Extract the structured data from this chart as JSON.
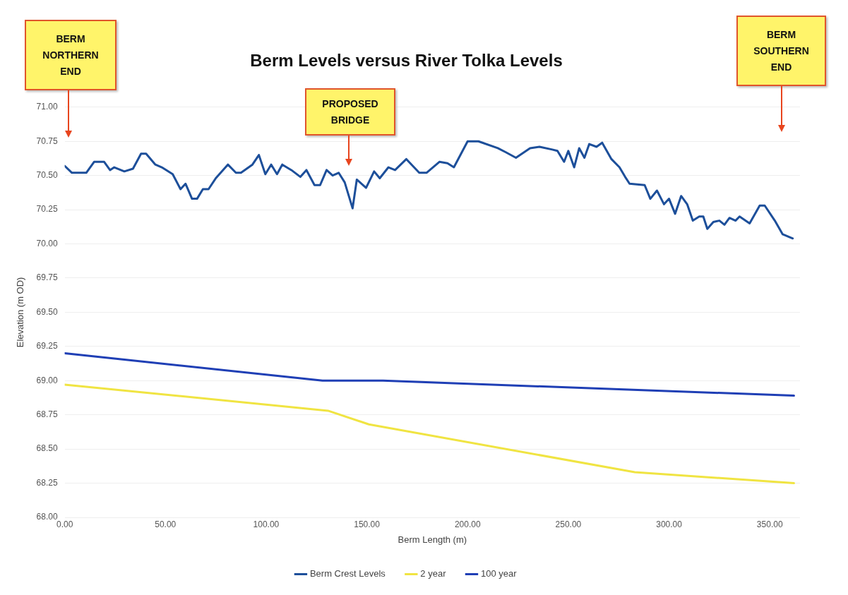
{
  "chart_data": {
    "type": "line",
    "title": "Berm Levels versus River Tolka Levels",
    "xlabel": "Berm Length (m)",
    "ylabel": "Elevation (m OD)",
    "xlim": [
      0,
      365
    ],
    "xticks": [
      {
        "value": 0,
        "label": "0.00"
      },
      {
        "value": 50,
        "label": "50.00"
      },
      {
        "value": 100,
        "label": "100.00"
      },
      {
        "value": 150,
        "label": "150.00"
      },
      {
        "value": 200,
        "label": "200.00"
      },
      {
        "value": 250,
        "label": "250.00"
      },
      {
        "value": 300,
        "label": "300.00"
      },
      {
        "value": 350,
        "label": "350.00"
      }
    ],
    "ylim": [
      68,
      71
    ],
    "yticks": [
      {
        "value": 68,
        "label": "68.00"
      },
      {
        "value": 68.25,
        "label": "68.25"
      },
      {
        "value": 68.5,
        "label": "68.50"
      },
      {
        "value": 68.75,
        "label": "68.75"
      },
      {
        "value": 69,
        "label": "69.00"
      },
      {
        "value": 69.25,
        "label": "69.25"
      },
      {
        "value": 69.5,
        "label": "69.50"
      },
      {
        "value": 69.75,
        "label": "69.75"
      },
      {
        "value": 70,
        "label": "70.00"
      },
      {
        "value": 70.25,
        "label": "70.25"
      },
      {
        "value": 70.5,
        "label": "70.50"
      },
      {
        "value": 70.75,
        "label": "70.75"
      },
      {
        "value": 71,
        "label": "71.00"
      }
    ],
    "grid": "y",
    "legend": "bottom",
    "marker": "none",
    "line_style": "solid",
    "annotations": [
      "BERM NORTHERN END",
      "PROPOSED BRIDGE",
      "BERM SOUTHERN END"
    ],
    "series": [
      {
        "name": "Berm Crest Levels",
        "color": "#1d4f9a",
        "x": [
          0,
          3.6,
          10.7,
          14.6,
          19.6,
          22.5,
          24.6,
          29.6,
          33.9,
          37.9,
          40.4,
          45,
          48.2,
          53.6,
          57.5,
          60,
          63.2,
          65.7,
          68.6,
          71.4,
          75,
          81,
          85,
          87.5,
          93.2,
          96.4,
          99.6,
          102.5,
          105.4,
          108,
          112.5,
          117,
          120,
          124,
          126.8,
          130,
          133,
          136,
          139,
          142.9,
          145,
          149.6,
          153.6,
          156.4,
          160.7,
          164,
          169.6,
          176,
          179.6,
          186,
          190,
          193.2,
          200,
          205.4,
          215,
          219,
          224,
          231,
          235.7,
          242,
          244.6,
          247.9,
          250,
          252.9,
          255.4,
          258,
          260.4,
          264,
          266.8,
          271.4,
          275.4,
          278.2,
          280.4,
          287.9,
          290.7,
          294,
          297.5,
          300,
          303,
          306,
          309,
          311.8,
          315,
          317,
          319,
          322,
          325,
          327.5,
          330,
          333,
          335,
          340,
          345,
          347.5,
          352.5,
          356.4,
          361.4
        ],
        "values": [
          70.57,
          70.52,
          70.52,
          70.6,
          70.6,
          70.54,
          70.56,
          70.53,
          70.55,
          70.66,
          70.66,
          70.58,
          70.56,
          70.51,
          70.4,
          70.44,
          70.33,
          70.33,
          70.4,
          70.4,
          70.48,
          70.58,
          70.52,
          70.52,
          70.58,
          70.65,
          70.51,
          70.58,
          70.51,
          70.58,
          70.54,
          70.49,
          70.54,
          70.43,
          70.43,
          70.54,
          70.5,
          70.52,
          70.45,
          70.26,
          70.47,
          70.41,
          70.53,
          70.48,
          70.56,
          70.54,
          70.62,
          70.52,
          70.52,
          70.6,
          70.59,
          70.56,
          70.75,
          70.75,
          70.7,
          70.67,
          70.63,
          70.7,
          70.71,
          70.69,
          70.68,
          70.6,
          70.68,
          70.56,
          70.7,
          70.63,
          70.73,
          70.71,
          70.74,
          70.62,
          70.56,
          70.49,
          70.44,
          70.43,
          70.33,
          70.39,
          70.29,
          70.33,
          70.22,
          70.35,
          70.29,
          70.17,
          70.2,
          70.2,
          70.11,
          70.16,
          70.17,
          70.14,
          70.19,
          70.17,
          70.2,
          70.15,
          70.28,
          70.28,
          70.17,
          70.07,
          70.04
        ]
      },
      {
        "name": "2 year",
        "color": "#f0e442",
        "x": [
          0,
          130.7,
          151,
          283,
          362
        ],
        "values": [
          68.97,
          68.78,
          68.68,
          68.33,
          68.25
        ]
      },
      {
        "name": "100 year",
        "color": "#1f3fb5",
        "x": [
          0,
          128,
          158,
          362
        ],
        "values": [
          69.2,
          69,
          69,
          68.89
        ]
      }
    ]
  }
}
